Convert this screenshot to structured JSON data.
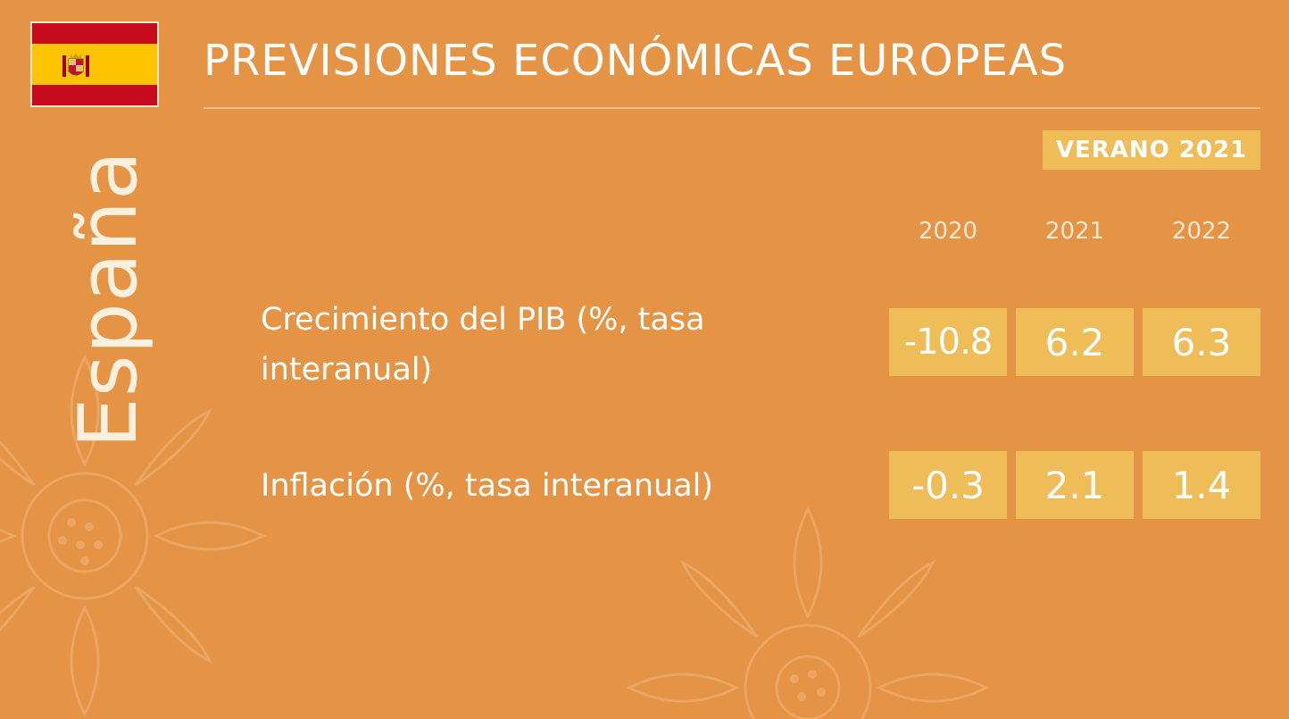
{
  "header": {
    "title": "PREVISIONES ECONÓMICAS EUROPEAS",
    "edition": "VERANO 2021"
  },
  "country": {
    "name": "España",
    "flag_icon": "spain-flag-icon"
  },
  "table": {
    "years": [
      "2020",
      "2021",
      "2022"
    ],
    "rows": [
      {
        "label": "Crecimiento del PIB (%, tasa interanual)",
        "values": [
          "-10.8",
          "6.2",
          "6.3"
        ]
      },
      {
        "label": "Inflación (%, tasa interanual)",
        "values": [
          "-0.3",
          "2.1",
          "1.4"
        ]
      }
    ]
  },
  "colors": {
    "background": "#e59446",
    "cell": "#efbd58",
    "text": "#ffffff",
    "flag_red": "#c60b1e",
    "flag_yellow": "#ffc400"
  }
}
